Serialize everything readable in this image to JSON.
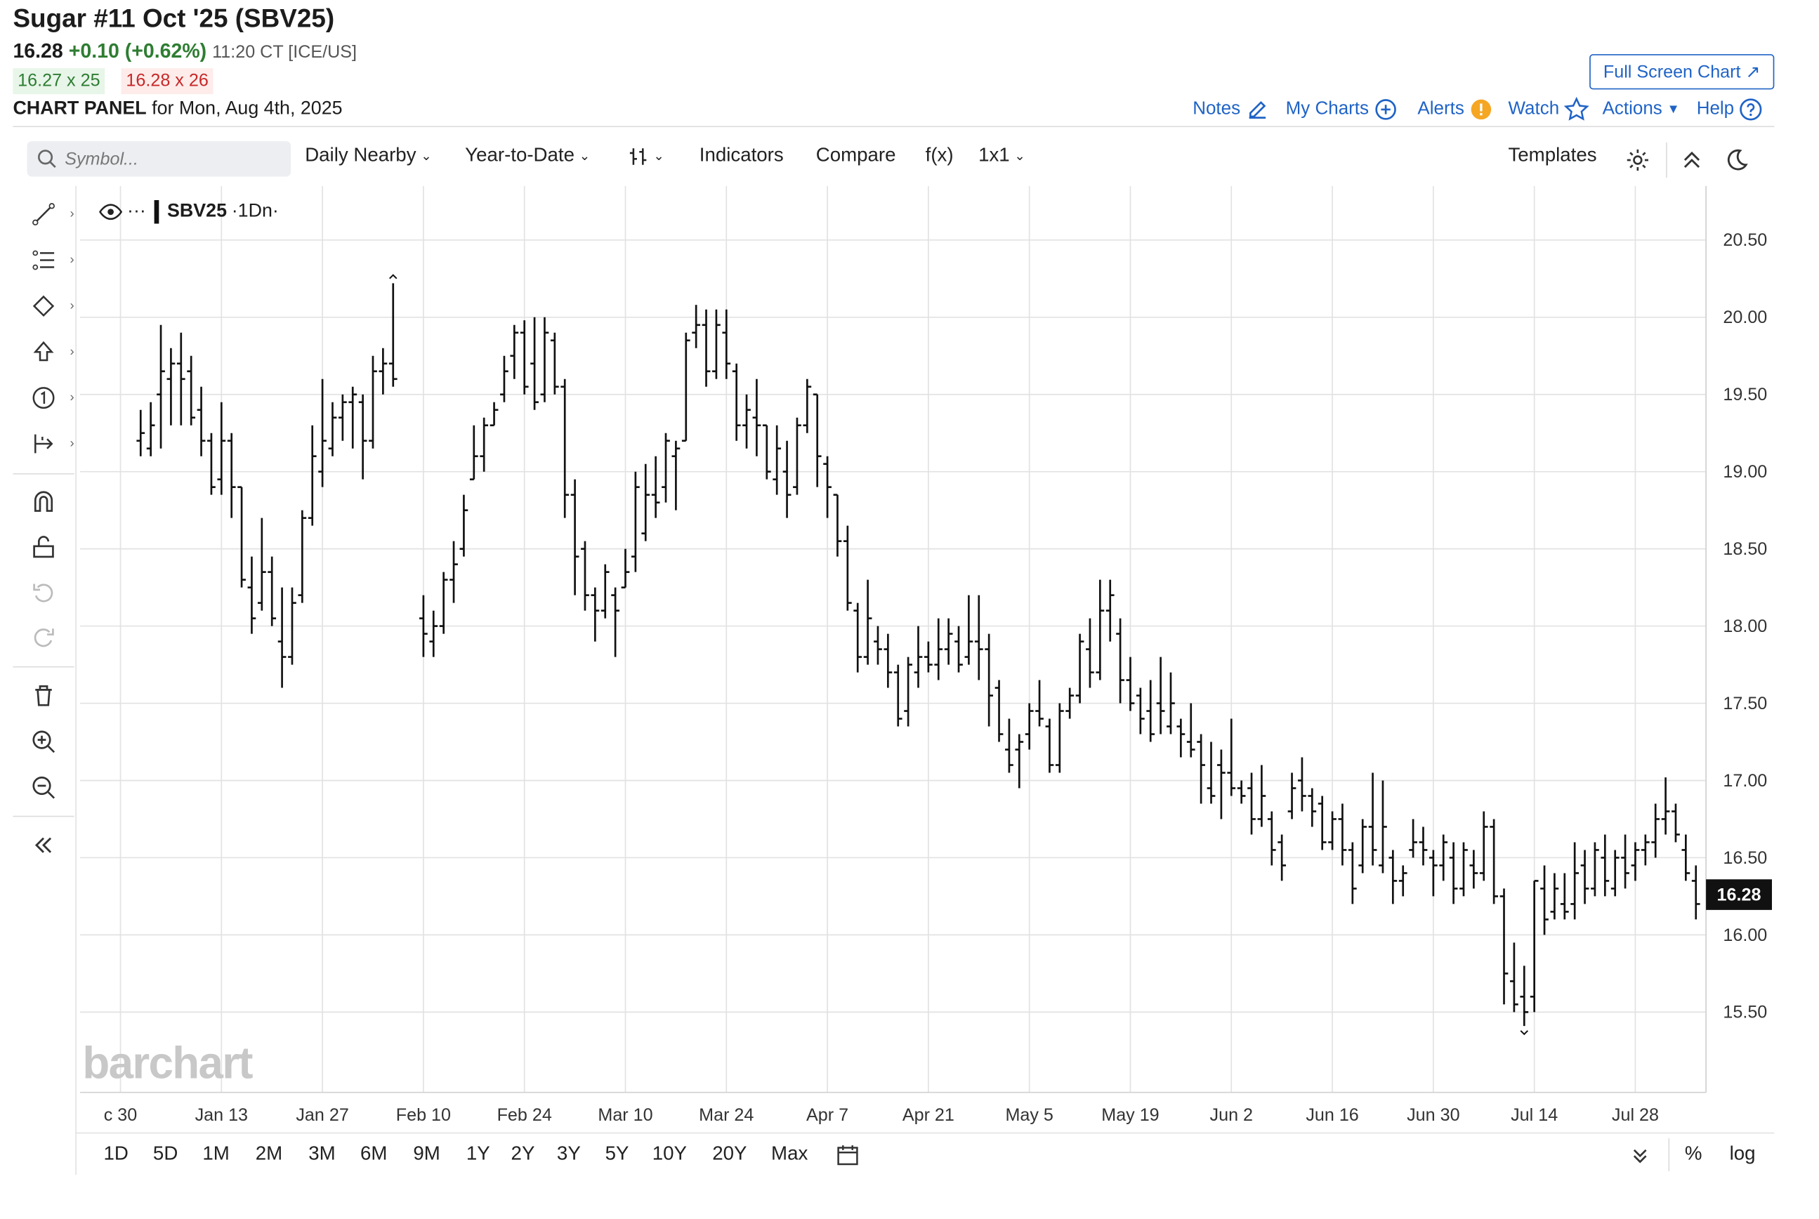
{
  "header": {
    "title": "Sugar #11 Oct '25 (SBV25)",
    "last": "16.28",
    "change": "+0.10 (+0.62%)",
    "time": "11:20 CT [ICE/US]",
    "bid": "16.27 x 25",
    "ask": "16.28 x 26",
    "panel_label": "CHART PANEL",
    "panel_date": "for Mon, Aug 4th, 2025",
    "full_screen": "Full Screen Chart ↗"
  },
  "links": {
    "notes": "Notes",
    "my_charts": "My Charts",
    "alerts": "Alerts",
    "watch": "Watch",
    "actions": "Actions",
    "help": "Help"
  },
  "toolbar": {
    "search_placeholder": "Symbol...",
    "nearby": "Daily Nearby",
    "period": "Year-to-Date",
    "indicators": "Indicators",
    "compare": "Compare",
    "fx": "f(x)",
    "layout": "1x1",
    "templates": "Templates"
  },
  "legend": {
    "dots": "···",
    "symbol": "SBV25",
    "interval": "·1Dn·"
  },
  "watermark": "barchart",
  "price_tag": "16.28",
  "bottom": {
    "ranges": [
      "1D",
      "5D",
      "1M",
      "2M",
      "3M",
      "6M",
      "9M",
      "1Y",
      "2Y",
      "3Y",
      "5Y",
      "10Y",
      "20Y",
      "Max"
    ],
    "percent": "%",
    "log": "log"
  },
  "chart_data": {
    "type": "ohlc",
    "title": "Sugar #11 Oct '25 (SBV25)",
    "xlabel": "",
    "ylabel": "",
    "ylim": [
      14.98,
      20.85
    ],
    "ytick_labels": [
      "20.50",
      "20.00",
      "19.50",
      "19.00",
      "18.50",
      "18.00",
      "17.50",
      "17.00",
      "16.50",
      "16.00",
      "15.50"
    ],
    "yticks": [
      20.5,
      20.0,
      19.5,
      19.0,
      18.5,
      18.0,
      17.5,
      17.0,
      16.5,
      16.0,
      15.5
    ],
    "xtick_labels": [
      "c 30",
      "Jan 13",
      "Jan 27",
      "Feb 10",
      "Feb 24",
      "Mar 10",
      "Mar 24",
      "Apr 7",
      "Apr 21",
      "May 5",
      "May 19",
      "Jun 2",
      "Jun 16",
      "Jun 30",
      "Jul 14",
      "Jul 28"
    ],
    "xticks": [
      -2,
      8,
      18,
      28,
      38,
      48,
      58,
      68,
      78,
      88,
      98,
      108,
      118,
      128,
      138,
      148
    ],
    "x_index_range": [
      -6,
      155
    ],
    "grid": true,
    "legend": "top-left",
    "bars": [
      {
        "x": 0,
        "o": 19.2,
        "h": 19.4,
        "l": 19.1,
        "c": 19.25
      },
      {
        "x": 1,
        "o": 19.15,
        "h": 19.45,
        "l": 19.1,
        "c": 19.3
      },
      {
        "x": 2,
        "o": 19.5,
        "h": 19.95,
        "l": 19.15,
        "c": 19.65
      },
      {
        "x": 3,
        "o": 19.6,
        "h": 19.8,
        "l": 19.3,
        "c": 19.7
      },
      {
        "x": 4,
        "o": 19.7,
        "h": 19.9,
        "l": 19.3,
        "c": 19.6
      },
      {
        "x": 5,
        "o": 19.65,
        "h": 19.75,
        "l": 19.3,
        "c": 19.35
      },
      {
        "x": 6,
        "o": 19.4,
        "h": 19.55,
        "l": 19.1,
        "c": 19.2
      },
      {
        "x": 7,
        "o": 19.2,
        "h": 19.25,
        "l": 18.85,
        "c": 18.9
      },
      {
        "x": 8,
        "o": 18.95,
        "h": 19.45,
        "l": 18.85,
        "c": 19.2
      },
      {
        "x": 9,
        "o": 19.2,
        "h": 19.25,
        "l": 18.7,
        "c": 18.9
      },
      {
        "x": 10,
        "o": 18.9,
        "h": 18.9,
        "l": 18.25,
        "c": 18.3
      },
      {
        "x": 11,
        "o": 18.25,
        "h": 18.45,
        "l": 17.95,
        "c": 18.05
      },
      {
        "x": 12,
        "o": 18.15,
        "h": 18.7,
        "l": 18.1,
        "c": 18.35
      },
      {
        "x": 13,
        "o": 18.35,
        "h": 18.45,
        "l": 18.0,
        "c": 18.05
      },
      {
        "x": 14,
        "o": 17.9,
        "h": 18.25,
        "l": 17.6,
        "c": 17.8
      },
      {
        "x": 15,
        "o": 17.8,
        "h": 18.25,
        "l": 17.75,
        "c": 18.15
      },
      {
        "x": 16,
        "o": 18.2,
        "h": 18.75,
        "l": 18.15,
        "c": 18.7
      },
      {
        "x": 17,
        "o": 18.7,
        "h": 19.3,
        "l": 18.65,
        "c": 19.1
      },
      {
        "x": 18,
        "o": 19.0,
        "h": 19.6,
        "l": 18.9,
        "c": 19.2
      },
      {
        "x": 19,
        "o": 19.15,
        "h": 19.45,
        "l": 19.1,
        "c": 19.35
      },
      {
        "x": 20,
        "o": 19.35,
        "h": 19.5,
        "l": 19.2,
        "c": 19.45
      },
      {
        "x": 21,
        "o": 19.45,
        "h": 19.55,
        "l": 19.15,
        "c": 19.5
      },
      {
        "x": 22,
        "o": 19.45,
        "h": 19.5,
        "l": 18.95,
        "c": 19.2
      },
      {
        "x": 23,
        "o": 19.2,
        "h": 19.75,
        "l": 19.15,
        "c": 19.65
      },
      {
        "x": 24,
        "o": 19.65,
        "h": 19.8,
        "l": 19.5,
        "c": 19.7
      },
      {
        "x": 25,
        "o": 19.7,
        "h": 20.22,
        "l": 19.55,
        "c": 19.6
      },
      {
        "x": 28,
        "o": 18.05,
        "h": 18.2,
        "l": 17.8,
        "c": 17.95
      },
      {
        "x": 29,
        "o": 17.9,
        "h": 18.1,
        "l": 17.8,
        "c": 18.0
      },
      {
        "x": 30,
        "o": 18.0,
        "h": 18.35,
        "l": 17.95,
        "c": 18.3
      },
      {
        "x": 31,
        "o": 18.3,
        "h": 18.55,
        "l": 18.15,
        "c": 18.4
      },
      {
        "x": 32,
        "o": 18.5,
        "h": 18.85,
        "l": 18.45,
        "c": 18.75
      },
      {
        "x": 33,
        "o": 18.95,
        "h": 19.3,
        "l": 18.95,
        "c": 19.1
      },
      {
        "x": 34,
        "o": 19.1,
        "h": 19.35,
        "l": 19.0,
        "c": 19.3
      },
      {
        "x": 35,
        "o": 19.3,
        "h": 19.45,
        "l": 19.3,
        "c": 19.4
      },
      {
        "x": 36,
        "o": 19.5,
        "h": 19.75,
        "l": 19.45,
        "c": 19.65
      },
      {
        "x": 37,
        "o": 19.75,
        "h": 19.95,
        "l": 19.6,
        "c": 19.9
      },
      {
        "x": 38,
        "o": 19.9,
        "h": 19.98,
        "l": 19.5,
        "c": 19.55
      },
      {
        "x": 39,
        "o": 19.7,
        "h": 20.0,
        "l": 19.4,
        "c": 19.45
      },
      {
        "x": 40,
        "o": 19.5,
        "h": 20.0,
        "l": 19.45,
        "c": 19.9
      },
      {
        "x": 41,
        "o": 19.85,
        "h": 19.9,
        "l": 19.5,
        "c": 19.55
      },
      {
        "x": 42,
        "o": 19.55,
        "h": 19.6,
        "l": 18.7,
        "c": 18.85
      },
      {
        "x": 43,
        "o": 18.85,
        "h": 18.95,
        "l": 18.2,
        "c": 18.45
      },
      {
        "x": 44,
        "o": 18.5,
        "h": 18.55,
        "l": 18.1,
        "c": 18.2
      },
      {
        "x": 45,
        "o": 18.2,
        "h": 18.25,
        "l": 17.9,
        "c": 18.1
      },
      {
        "x": 46,
        "o": 18.1,
        "h": 18.4,
        "l": 18.05,
        "c": 18.35
      },
      {
        "x": 47,
        "o": 18.2,
        "h": 18.25,
        "l": 17.8,
        "c": 18.1
      },
      {
        "x": 48,
        "o": 18.25,
        "h": 18.5,
        "l": 18.25,
        "c": 18.35
      },
      {
        "x": 49,
        "o": 18.45,
        "h": 19.0,
        "l": 18.35,
        "c": 18.9
      },
      {
        "x": 50,
        "o": 18.6,
        "h": 19.05,
        "l": 18.55,
        "c": 18.85
      },
      {
        "x": 51,
        "o": 18.85,
        "h": 19.1,
        "l": 18.7,
        "c": 18.8
      },
      {
        "x": 52,
        "o": 18.9,
        "h": 19.25,
        "l": 18.8,
        "c": 19.2
      },
      {
        "x": 53,
        "o": 19.1,
        "h": 19.2,
        "l": 18.75,
        "c": 19.15
      },
      {
        "x": 54,
        "o": 19.2,
        "h": 19.9,
        "l": 19.2,
        "c": 19.85
      },
      {
        "x": 55,
        "o": 19.9,
        "h": 20.08,
        "l": 19.8,
        "c": 19.95
      },
      {
        "x": 56,
        "o": 19.95,
        "h": 20.05,
        "l": 19.55,
        "c": 19.65
      },
      {
        "x": 57,
        "o": 19.65,
        "h": 20.05,
        "l": 19.6,
        "c": 19.95
      },
      {
        "x": 58,
        "o": 19.9,
        "h": 20.05,
        "l": 19.6,
        "c": 19.7
      },
      {
        "x": 59,
        "o": 19.65,
        "h": 19.7,
        "l": 19.2,
        "c": 19.3
      },
      {
        "x": 60,
        "o": 19.3,
        "h": 19.5,
        "l": 19.15,
        "c": 19.4
      },
      {
        "x": 61,
        "o": 19.35,
        "h": 19.6,
        "l": 19.1,
        "c": 19.3
      },
      {
        "x": 62,
        "o": 19.3,
        "h": 19.3,
        "l": 18.95,
        "c": 19.0
      },
      {
        "x": 63,
        "o": 18.95,
        "h": 19.3,
        "l": 18.85,
        "c": 19.15
      },
      {
        "x": 64,
        "o": 19.0,
        "h": 19.2,
        "l": 18.7,
        "c": 18.85
      },
      {
        "x": 65,
        "o": 18.9,
        "h": 19.35,
        "l": 18.85,
        "c": 19.3
      },
      {
        "x": 66,
        "o": 19.3,
        "h": 19.6,
        "l": 19.25,
        "c": 19.55
      },
      {
        "x": 67,
        "o": 19.5,
        "h": 19.5,
        "l": 18.9,
        "c": 19.1
      },
      {
        "x": 68,
        "o": 19.05,
        "h": 19.1,
        "l": 18.7,
        "c": 18.9
      },
      {
        "x": 69,
        "o": 18.85,
        "h": 18.85,
        "l": 18.45,
        "c": 18.55
      },
      {
        "x": 70,
        "o": 18.55,
        "h": 18.65,
        "l": 18.1,
        "c": 18.15
      },
      {
        "x": 71,
        "o": 18.1,
        "h": 18.15,
        "l": 17.7,
        "c": 17.8
      },
      {
        "x": 72,
        "o": 17.8,
        "h": 18.3,
        "l": 17.75,
        "c": 18.05
      },
      {
        "x": 73,
        "o": 17.9,
        "h": 18.0,
        "l": 17.75,
        "c": 17.85
      },
      {
        "x": 74,
        "o": 17.85,
        "h": 17.95,
        "l": 17.6,
        "c": 17.7
      },
      {
        "x": 75,
        "o": 17.7,
        "h": 17.75,
        "l": 17.35,
        "c": 17.4
      },
      {
        "x": 76,
        "o": 17.45,
        "h": 17.8,
        "l": 17.35,
        "c": 17.75
      },
      {
        "x": 77,
        "o": 17.7,
        "h": 18.0,
        "l": 17.6,
        "c": 17.8
      },
      {
        "x": 78,
        "o": 17.8,
        "h": 17.9,
        "l": 17.7,
        "c": 17.75
      },
      {
        "x": 79,
        "o": 17.75,
        "h": 18.05,
        "l": 17.65,
        "c": 17.85
      },
      {
        "x": 80,
        "o": 17.85,
        "h": 18.05,
        "l": 17.75,
        "c": 17.95
      },
      {
        "x": 81,
        "o": 17.9,
        "h": 18.0,
        "l": 17.7,
        "c": 17.75
      },
      {
        "x": 82,
        "o": 17.8,
        "h": 18.2,
        "l": 17.75,
        "c": 17.9
      },
      {
        "x": 83,
        "o": 17.9,
        "h": 18.2,
        "l": 17.65,
        "c": 17.85
      },
      {
        "x": 84,
        "o": 17.85,
        "h": 17.95,
        "l": 17.35,
        "c": 17.55
      },
      {
        "x": 85,
        "o": 17.6,
        "h": 17.65,
        "l": 17.25,
        "c": 17.3
      },
      {
        "x": 86,
        "o": 17.2,
        "h": 17.4,
        "l": 17.05,
        "c": 17.1
      },
      {
        "x": 87,
        "o": 17.2,
        "h": 17.3,
        "l": 16.95,
        "c": 17.25
      },
      {
        "x": 88,
        "o": 17.3,
        "h": 17.5,
        "l": 17.2,
        "c": 17.45
      },
      {
        "x": 89,
        "o": 17.45,
        "h": 17.65,
        "l": 17.35,
        "c": 17.4
      },
      {
        "x": 90,
        "o": 17.35,
        "h": 17.4,
        "l": 17.05,
        "c": 17.1
      },
      {
        "x": 91,
        "o": 17.1,
        "h": 17.5,
        "l": 17.05,
        "c": 17.45
      },
      {
        "x": 92,
        "o": 17.45,
        "h": 17.6,
        "l": 17.4,
        "c": 17.55
      },
      {
        "x": 93,
        "o": 17.55,
        "h": 17.95,
        "l": 17.5,
        "c": 17.9
      },
      {
        "x": 94,
        "o": 17.85,
        "h": 18.05,
        "l": 17.6,
        "c": 17.7
      },
      {
        "x": 95,
        "o": 17.7,
        "h": 18.3,
        "l": 17.65,
        "c": 18.1
      },
      {
        "x": 96,
        "o": 18.1,
        "h": 18.3,
        "l": 17.9,
        "c": 18.2
      },
      {
        "x": 97,
        "o": 17.95,
        "h": 18.05,
        "l": 17.5,
        "c": 17.65
      },
      {
        "x": 98,
        "o": 17.65,
        "h": 17.8,
        "l": 17.45,
        "c": 17.5
      },
      {
        "x": 99,
        "o": 17.55,
        "h": 17.6,
        "l": 17.3,
        "c": 17.4
      },
      {
        "x": 100,
        "o": 17.45,
        "h": 17.65,
        "l": 17.25,
        "c": 17.3
      },
      {
        "x": 101,
        "o": 17.5,
        "h": 17.8,
        "l": 17.3,
        "c": 17.45
      },
      {
        "x": 102,
        "o": 17.35,
        "h": 17.7,
        "l": 17.3,
        "c": 17.5
      },
      {
        "x": 103,
        "o": 17.35,
        "h": 17.4,
        "l": 17.15,
        "c": 17.3
      },
      {
        "x": 104,
        "o": 17.25,
        "h": 17.5,
        "l": 17.15,
        "c": 17.2
      },
      {
        "x": 105,
        "o": 17.25,
        "h": 17.3,
        "l": 16.85,
        "c": 17.1
      },
      {
        "x": 106,
        "o": 16.95,
        "h": 17.25,
        "l": 16.85,
        "c": 16.9
      },
      {
        "x": 107,
        "o": 17.1,
        "h": 17.2,
        "l": 16.75,
        "c": 17.05
      },
      {
        "x": 108,
        "o": 17.05,
        "h": 17.4,
        "l": 16.9,
        "c": 16.95
      },
      {
        "x": 109,
        "o": 16.95,
        "h": 17.0,
        "l": 16.85,
        "c": 16.9
      },
      {
        "x": 110,
        "o": 16.95,
        "h": 17.05,
        "l": 16.65,
        "c": 16.75
      },
      {
        "x": 111,
        "o": 16.75,
        "h": 17.1,
        "l": 16.7,
        "c": 16.9
      },
      {
        "x": 112,
        "o": 16.75,
        "h": 16.8,
        "l": 16.45,
        "c": 16.55
      },
      {
        "x": 113,
        "o": 16.6,
        "h": 16.65,
        "l": 16.35,
        "c": 16.45
      },
      {
        "x": 114,
        "o": 16.8,
        "h": 17.05,
        "l": 16.75,
        "c": 16.95
      },
      {
        "x": 115,
        "o": 17.0,
        "h": 17.15,
        "l": 16.8,
        "c": 16.9
      },
      {
        "x": 116,
        "o": 16.9,
        "h": 16.95,
        "l": 16.7,
        "c": 16.8
      },
      {
        "x": 117,
        "o": 16.85,
        "h": 16.9,
        "l": 16.55,
        "c": 16.6
      },
      {
        "x": 118,
        "o": 16.6,
        "h": 16.8,
        "l": 16.55,
        "c": 16.75
      },
      {
        "x": 119,
        "o": 16.75,
        "h": 16.85,
        "l": 16.45,
        "c": 16.55
      },
      {
        "x": 120,
        "o": 16.55,
        "h": 16.6,
        "l": 16.2,
        "c": 16.3
      },
      {
        "x": 121,
        "o": 16.45,
        "h": 16.75,
        "l": 16.4,
        "c": 16.7
      },
      {
        "x": 122,
        "o": 16.7,
        "h": 17.05,
        "l": 16.45,
        "c": 16.55
      },
      {
        "x": 123,
        "o": 16.45,
        "h": 17.0,
        "l": 16.4,
        "c": 16.7
      },
      {
        "x": 124,
        "o": 16.5,
        "h": 16.55,
        "l": 16.2,
        "c": 16.35
      },
      {
        "x": 125,
        "o": 16.35,
        "h": 16.45,
        "l": 16.25,
        "c": 16.4
      },
      {
        "x": 126,
        "o": 16.55,
        "h": 16.75,
        "l": 16.5,
        "c": 16.6
      },
      {
        "x": 127,
        "o": 16.6,
        "h": 16.7,
        "l": 16.45,
        "c": 16.55
      },
      {
        "x": 128,
        "o": 16.5,
        "h": 16.55,
        "l": 16.25,
        "c": 16.45
      },
      {
        "x": 129,
        "o": 16.45,
        "h": 16.65,
        "l": 16.35,
        "c": 16.6
      },
      {
        "x": 130,
        "o": 16.5,
        "h": 16.6,
        "l": 16.2,
        "c": 16.3
      },
      {
        "x": 131,
        "o": 16.3,
        "h": 16.6,
        "l": 16.25,
        "c": 16.55
      },
      {
        "x": 132,
        "o": 16.45,
        "h": 16.55,
        "l": 16.3,
        "c": 16.4
      },
      {
        "x": 133,
        "o": 16.4,
        "h": 16.8,
        "l": 16.35,
        "c": 16.7
      },
      {
        "x": 134,
        "o": 16.7,
        "h": 16.75,
        "l": 16.2,
        "c": 16.25
      },
      {
        "x": 135,
        "o": 16.25,
        "h": 16.3,
        "l": 15.55,
        "c": 15.75
      },
      {
        "x": 136,
        "o": 15.7,
        "h": 15.95,
        "l": 15.5,
        "c": 15.55
      },
      {
        "x": 137,
        "o": 15.6,
        "h": 15.8,
        "l": 15.41,
        "c": 15.5
      },
      {
        "x": 138,
        "o": 15.6,
        "h": 16.35,
        "l": 15.5,
        "c": 16.35
      },
      {
        "x": 139,
        "o": 16.3,
        "h": 16.45,
        "l": 16.0,
        "c": 16.1
      },
      {
        "x": 140,
        "o": 16.15,
        "h": 16.4,
        "l": 16.1,
        "c": 16.3
      },
      {
        "x": 141,
        "o": 16.2,
        "h": 16.4,
        "l": 16.1,
        "c": 16.15
      },
      {
        "x": 142,
        "o": 16.2,
        "h": 16.6,
        "l": 16.1,
        "c": 16.4
      },
      {
        "x": 143,
        "o": 16.45,
        "h": 16.55,
        "l": 16.2,
        "c": 16.3
      },
      {
        "x": 144,
        "o": 16.3,
        "h": 16.6,
        "l": 16.25,
        "c": 16.55
      },
      {
        "x": 145,
        "o": 16.5,
        "h": 16.65,
        "l": 16.25,
        "c": 16.35
      },
      {
        "x": 146,
        "o": 16.3,
        "h": 16.55,
        "l": 16.25,
        "c": 16.5
      },
      {
        "x": 147,
        "o": 16.5,
        "h": 16.65,
        "l": 16.3,
        "c": 16.4
      },
      {
        "x": 148,
        "o": 16.45,
        "h": 16.6,
        "l": 16.35,
        "c": 16.55
      },
      {
        "x": 149,
        "o": 16.55,
        "h": 16.65,
        "l": 16.45,
        "c": 16.6
      },
      {
        "x": 150,
        "o": 16.6,
        "h": 16.85,
        "l": 16.5,
        "c": 16.75
      },
      {
        "x": 151,
        "o": 16.75,
        "h": 17.02,
        "l": 16.65,
        "c": 16.8
      },
      {
        "x": 152,
        "o": 16.8,
        "h": 16.85,
        "l": 16.6,
        "c": 16.65
      },
      {
        "x": 153,
        "o": 16.55,
        "h": 16.65,
        "l": 16.35,
        "c": 16.4
      },
      {
        "x": 154,
        "o": 16.35,
        "h": 16.45,
        "l": 16.1,
        "c": 16.2
      }
    ]
  }
}
